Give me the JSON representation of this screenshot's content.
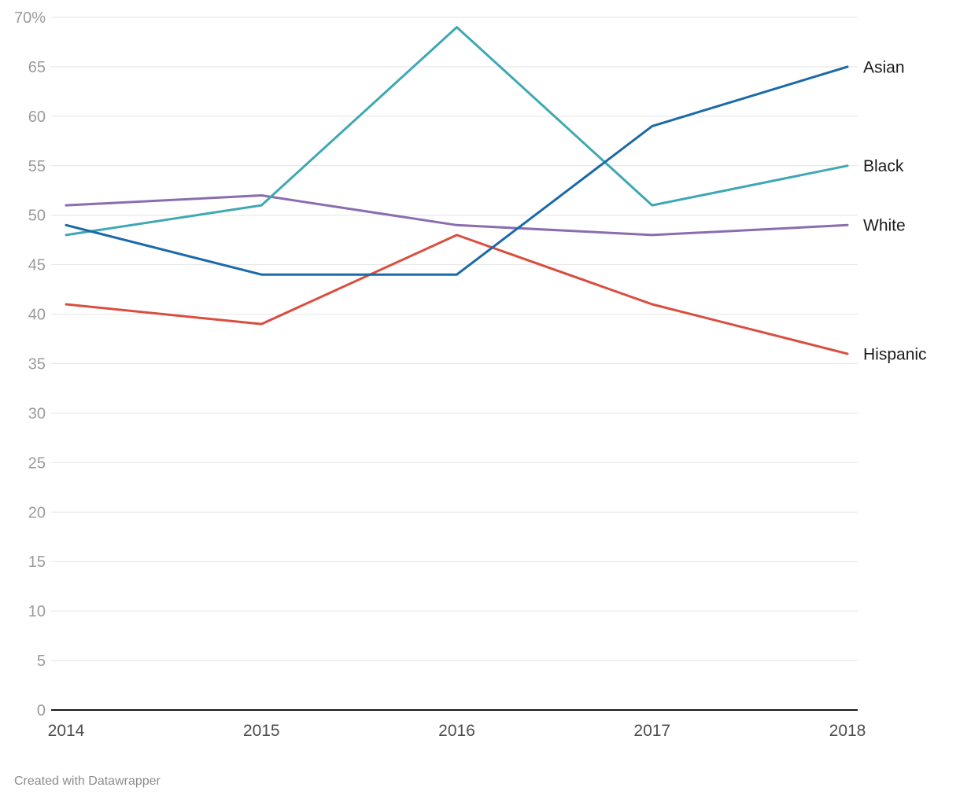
{
  "chart_data": {
    "type": "line",
    "x": [
      2014,
      2015,
      2016,
      2017,
      2018
    ],
    "series": [
      {
        "name": "Asian",
        "color": "#1c69a8",
        "values": [
          49,
          44,
          44,
          59,
          65
        ]
      },
      {
        "name": "Black",
        "color": "#3fa8b2",
        "values": [
          48,
          51,
          69,
          51,
          55
        ]
      },
      {
        "name": "White",
        "color": "#8a6dae",
        "values": [
          51,
          52,
          49,
          48,
          49
        ]
      },
      {
        "name": "Hispanic",
        "color": "#d94e3f",
        "values": [
          41,
          39,
          48,
          41,
          36
        ]
      }
    ],
    "ylim": [
      0,
      70
    ],
    "ytick_step": 5,
    "ytick_top_label": "70%",
    "grid": "horizontal",
    "legend_position": "right-end-labels",
    "xlabel": "",
    "ylabel": "",
    "title": ""
  },
  "colors": {
    "gridline": "#e4e4e4",
    "axis_line": "#1a1a1a",
    "ytick_label": "#9b9b9b",
    "xtick_label": "#4d4d4d",
    "series_label": "#1a1a1a"
  },
  "footer": {
    "credit": "Created with Datawrapper"
  }
}
